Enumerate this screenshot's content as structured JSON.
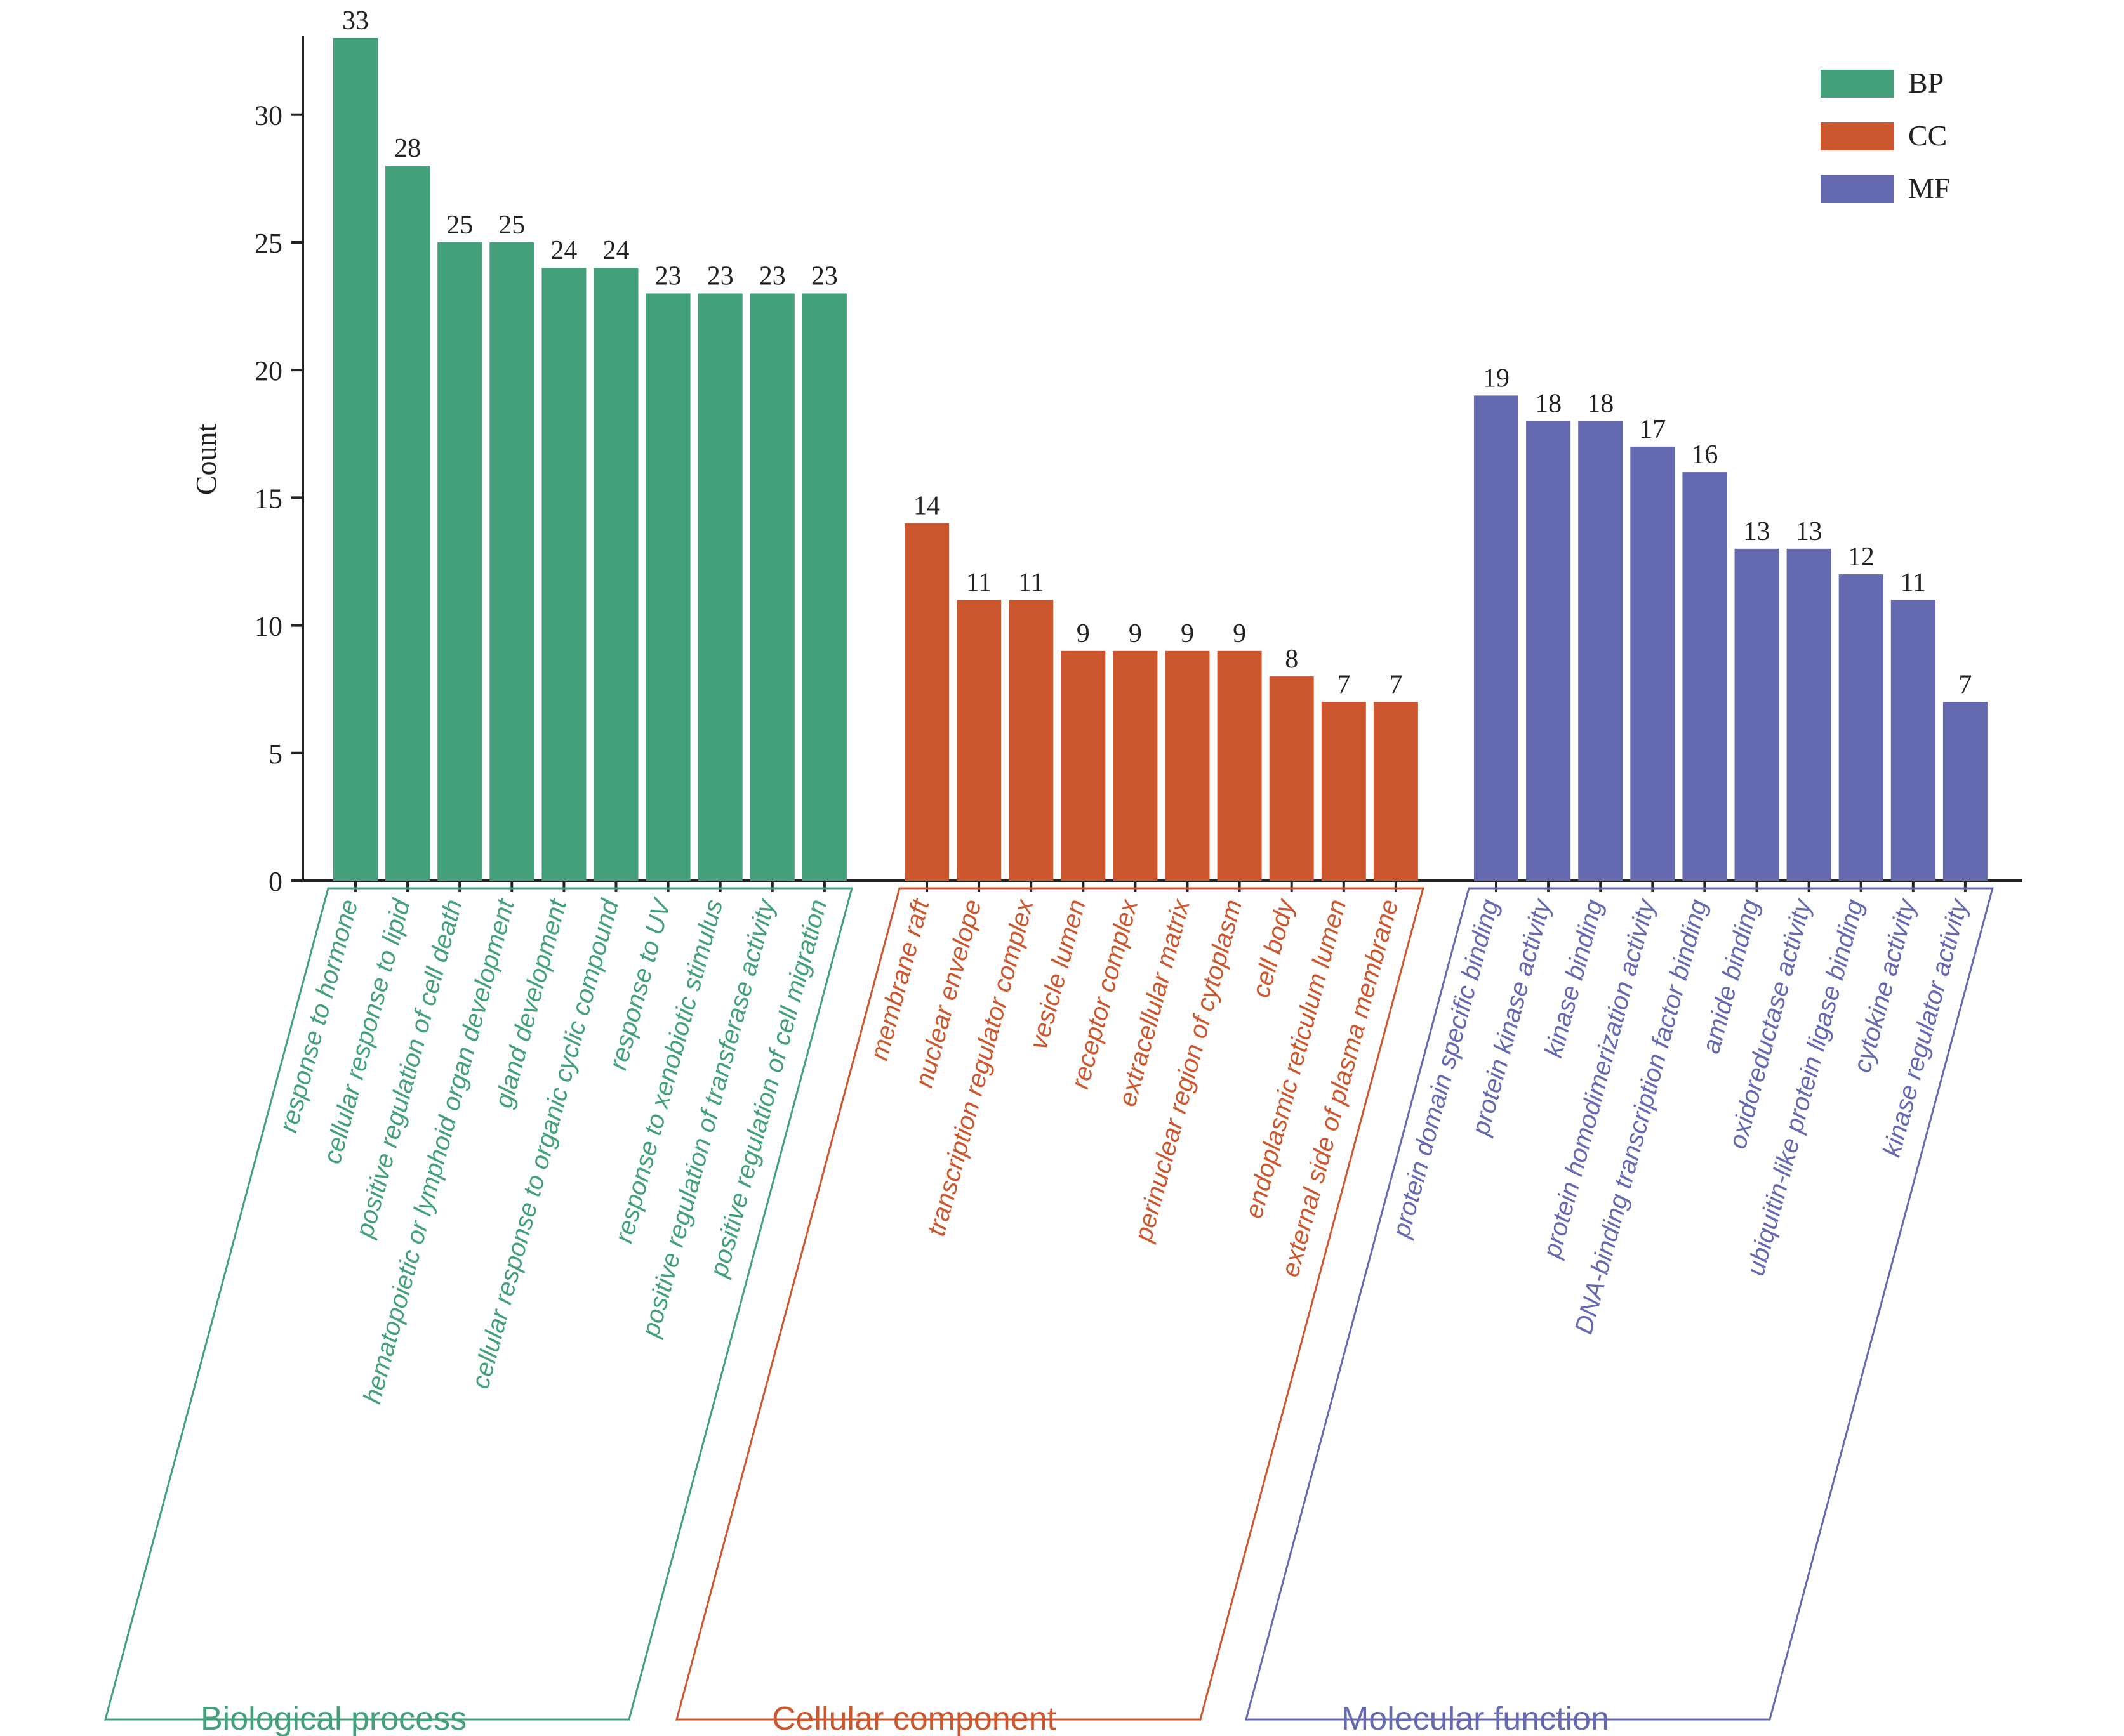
{
  "chart_data": {
    "type": "bar",
    "ylabel": "Count",
    "ylim": [
      0,
      33
    ],
    "yticks": [
      0,
      5,
      10,
      15,
      20,
      25,
      30
    ],
    "grid": false,
    "legend_position": "top-right",
    "series": [
      {
        "name": "BP",
        "group_label": "Biological process",
        "color": "#43a07b",
        "categories": [
          "response to hormone",
          "cellular response to lipid",
          "positive regulation of cell death",
          "hematopoietic or lymphoid organ development",
          "gland development",
          "cellular response to organic cyclic compound",
          "response to UV",
          "response to xenobiotic stimulus",
          "positive regulation of transferase activity",
          "positive regulation of cell migration"
        ],
        "values": [
          33,
          28,
          25,
          25,
          24,
          24,
          23,
          23,
          23,
          23
        ]
      },
      {
        "name": "CC",
        "group_label": "Cellular component",
        "color": "#cc572e",
        "categories": [
          "membrane raft",
          "nuclear envelope",
          "transcription regulator complex",
          "vesicle lumen",
          "receptor complex",
          "extracellular matrix",
          "perinuclear region of cytoplasm",
          "cell body",
          "endoplasmic reticulum lumen",
          "external side of plasma membrane"
        ],
        "values": [
          14,
          11,
          11,
          9,
          9,
          9,
          9,
          8,
          7,
          7
        ]
      },
      {
        "name": "MF",
        "group_label": "Molecular function",
        "color": "#6469b0",
        "categories": [
          "protein domain specific binding",
          "protein kinase activity",
          "kinase binding",
          "protein homodimerization activity",
          "DNA-binding transcription factor binding",
          "amide binding",
          "oxidoreductase activity",
          "ubiquitin-like protein ligase binding",
          "cytokine activity",
          "kinase regulator activity"
        ],
        "values": [
          19,
          18,
          18,
          17,
          16,
          13,
          13,
          12,
          11,
          7
        ]
      }
    ]
  }
}
